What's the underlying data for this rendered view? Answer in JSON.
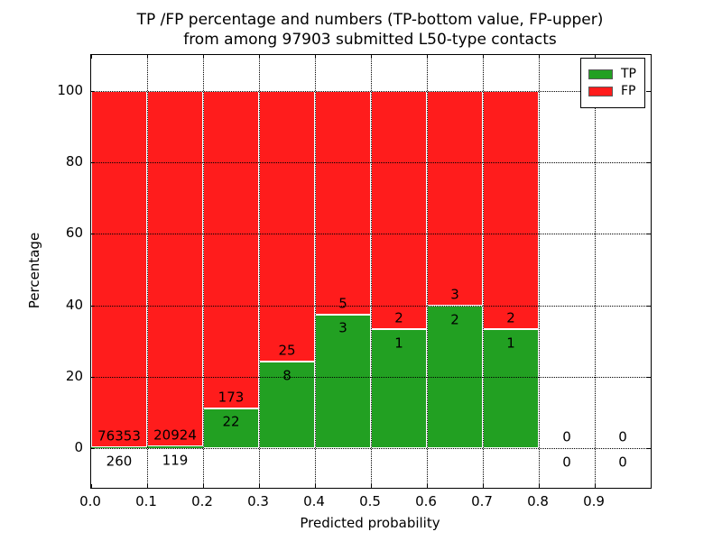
{
  "title": {
    "line1": "TP /FP percentage and numbers (TP-bottom value, FP-upper)",
    "line2": "from among 97903 submitted L50-type contacts"
  },
  "axes": {
    "xlabel": "Predicted probability",
    "ylabel": "Percentage",
    "x_ticks": [
      "0.0",
      "0.1",
      "0.2",
      "0.3",
      "0.4",
      "0.5",
      "0.6",
      "0.7",
      "0.8",
      "0.9"
    ],
    "y_ticks": [
      "0",
      "20",
      "40",
      "60",
      "80",
      "100"
    ]
  },
  "legend": {
    "items": [
      {
        "label": "TP",
        "color": "#22a022"
      },
      {
        "label": "FP",
        "color": "#ff1c1c"
      }
    ]
  },
  "colors": {
    "tp_green": "#22a022",
    "fp_red": "#ff1c1c",
    "bar_edge": "#ffffff",
    "grid": "#000000"
  },
  "chart_data": {
    "type": "bar",
    "stacked": true,
    "title": "TP /FP percentage and numbers (TP-bottom value, FP-upper) from among 97903 submitted L50-type contacts",
    "xlabel": "Predicted probability",
    "ylabel": "Percentage",
    "xlim": [
      0.0,
      1.0
    ],
    "ylim": [
      -11,
      110
    ],
    "bin_width": 0.1,
    "grid": true,
    "legend_position": "upper right",
    "total_contacts": 97903,
    "categories": [
      "0.0-0.1",
      "0.1-0.2",
      "0.2-0.3",
      "0.3-0.4",
      "0.4-0.5",
      "0.5-0.6",
      "0.6-0.7",
      "0.7-0.8",
      "0.8-0.9",
      "0.9-1.0"
    ],
    "series": [
      {
        "name": "TP",
        "counts": [
          260,
          119,
          22,
          8,
          3,
          1,
          2,
          1,
          0,
          0
        ],
        "pct": [
          0.34,
          0.57,
          11.28,
          24.24,
          37.5,
          33.33,
          40.0,
          33.33,
          0,
          0
        ]
      },
      {
        "name": "FP",
        "counts": [
          76353,
          20924,
          173,
          25,
          5,
          2,
          3,
          2,
          0,
          0
        ],
        "pct": [
          99.66,
          99.43,
          88.72,
          75.76,
          62.5,
          66.67,
          60.0,
          66.67,
          0,
          0
        ]
      }
    ],
    "bins": [
      {
        "x0": 0.0,
        "x1": 0.1,
        "tp_count": "260",
        "fp_count": "76353",
        "tp_pct": 0.34,
        "has_bar": true
      },
      {
        "x0": 0.1,
        "x1": 0.2,
        "tp_count": "119",
        "fp_count": "20924",
        "tp_pct": 0.57,
        "has_bar": true
      },
      {
        "x0": 0.2,
        "x1": 0.3,
        "tp_count": "22",
        "fp_count": "173",
        "tp_pct": 11.28,
        "has_bar": true
      },
      {
        "x0": 0.3,
        "x1": 0.4,
        "tp_count": "8",
        "fp_count": "25",
        "tp_pct": 24.24,
        "has_bar": true
      },
      {
        "x0": 0.4,
        "x1": 0.5,
        "tp_count": "3",
        "fp_count": "5",
        "tp_pct": 37.5,
        "has_bar": true
      },
      {
        "x0": 0.5,
        "x1": 0.6,
        "tp_count": "1",
        "fp_count": "2",
        "tp_pct": 33.33,
        "has_bar": true
      },
      {
        "x0": 0.6,
        "x1": 0.7,
        "tp_count": "2",
        "fp_count": "3",
        "tp_pct": 40.0,
        "has_bar": true
      },
      {
        "x0": 0.7,
        "x1": 0.8,
        "tp_count": "1",
        "fp_count": "2",
        "tp_pct": 33.33,
        "has_bar": true
      },
      {
        "x0": 0.8,
        "x1": 0.9,
        "tp_count": "0",
        "fp_count": "0",
        "tp_pct": 0,
        "has_bar": false
      },
      {
        "x0": 0.9,
        "x1": 1.0,
        "tp_count": "0",
        "fp_count": "0",
        "tp_pct": 0,
        "has_bar": false
      }
    ]
  }
}
